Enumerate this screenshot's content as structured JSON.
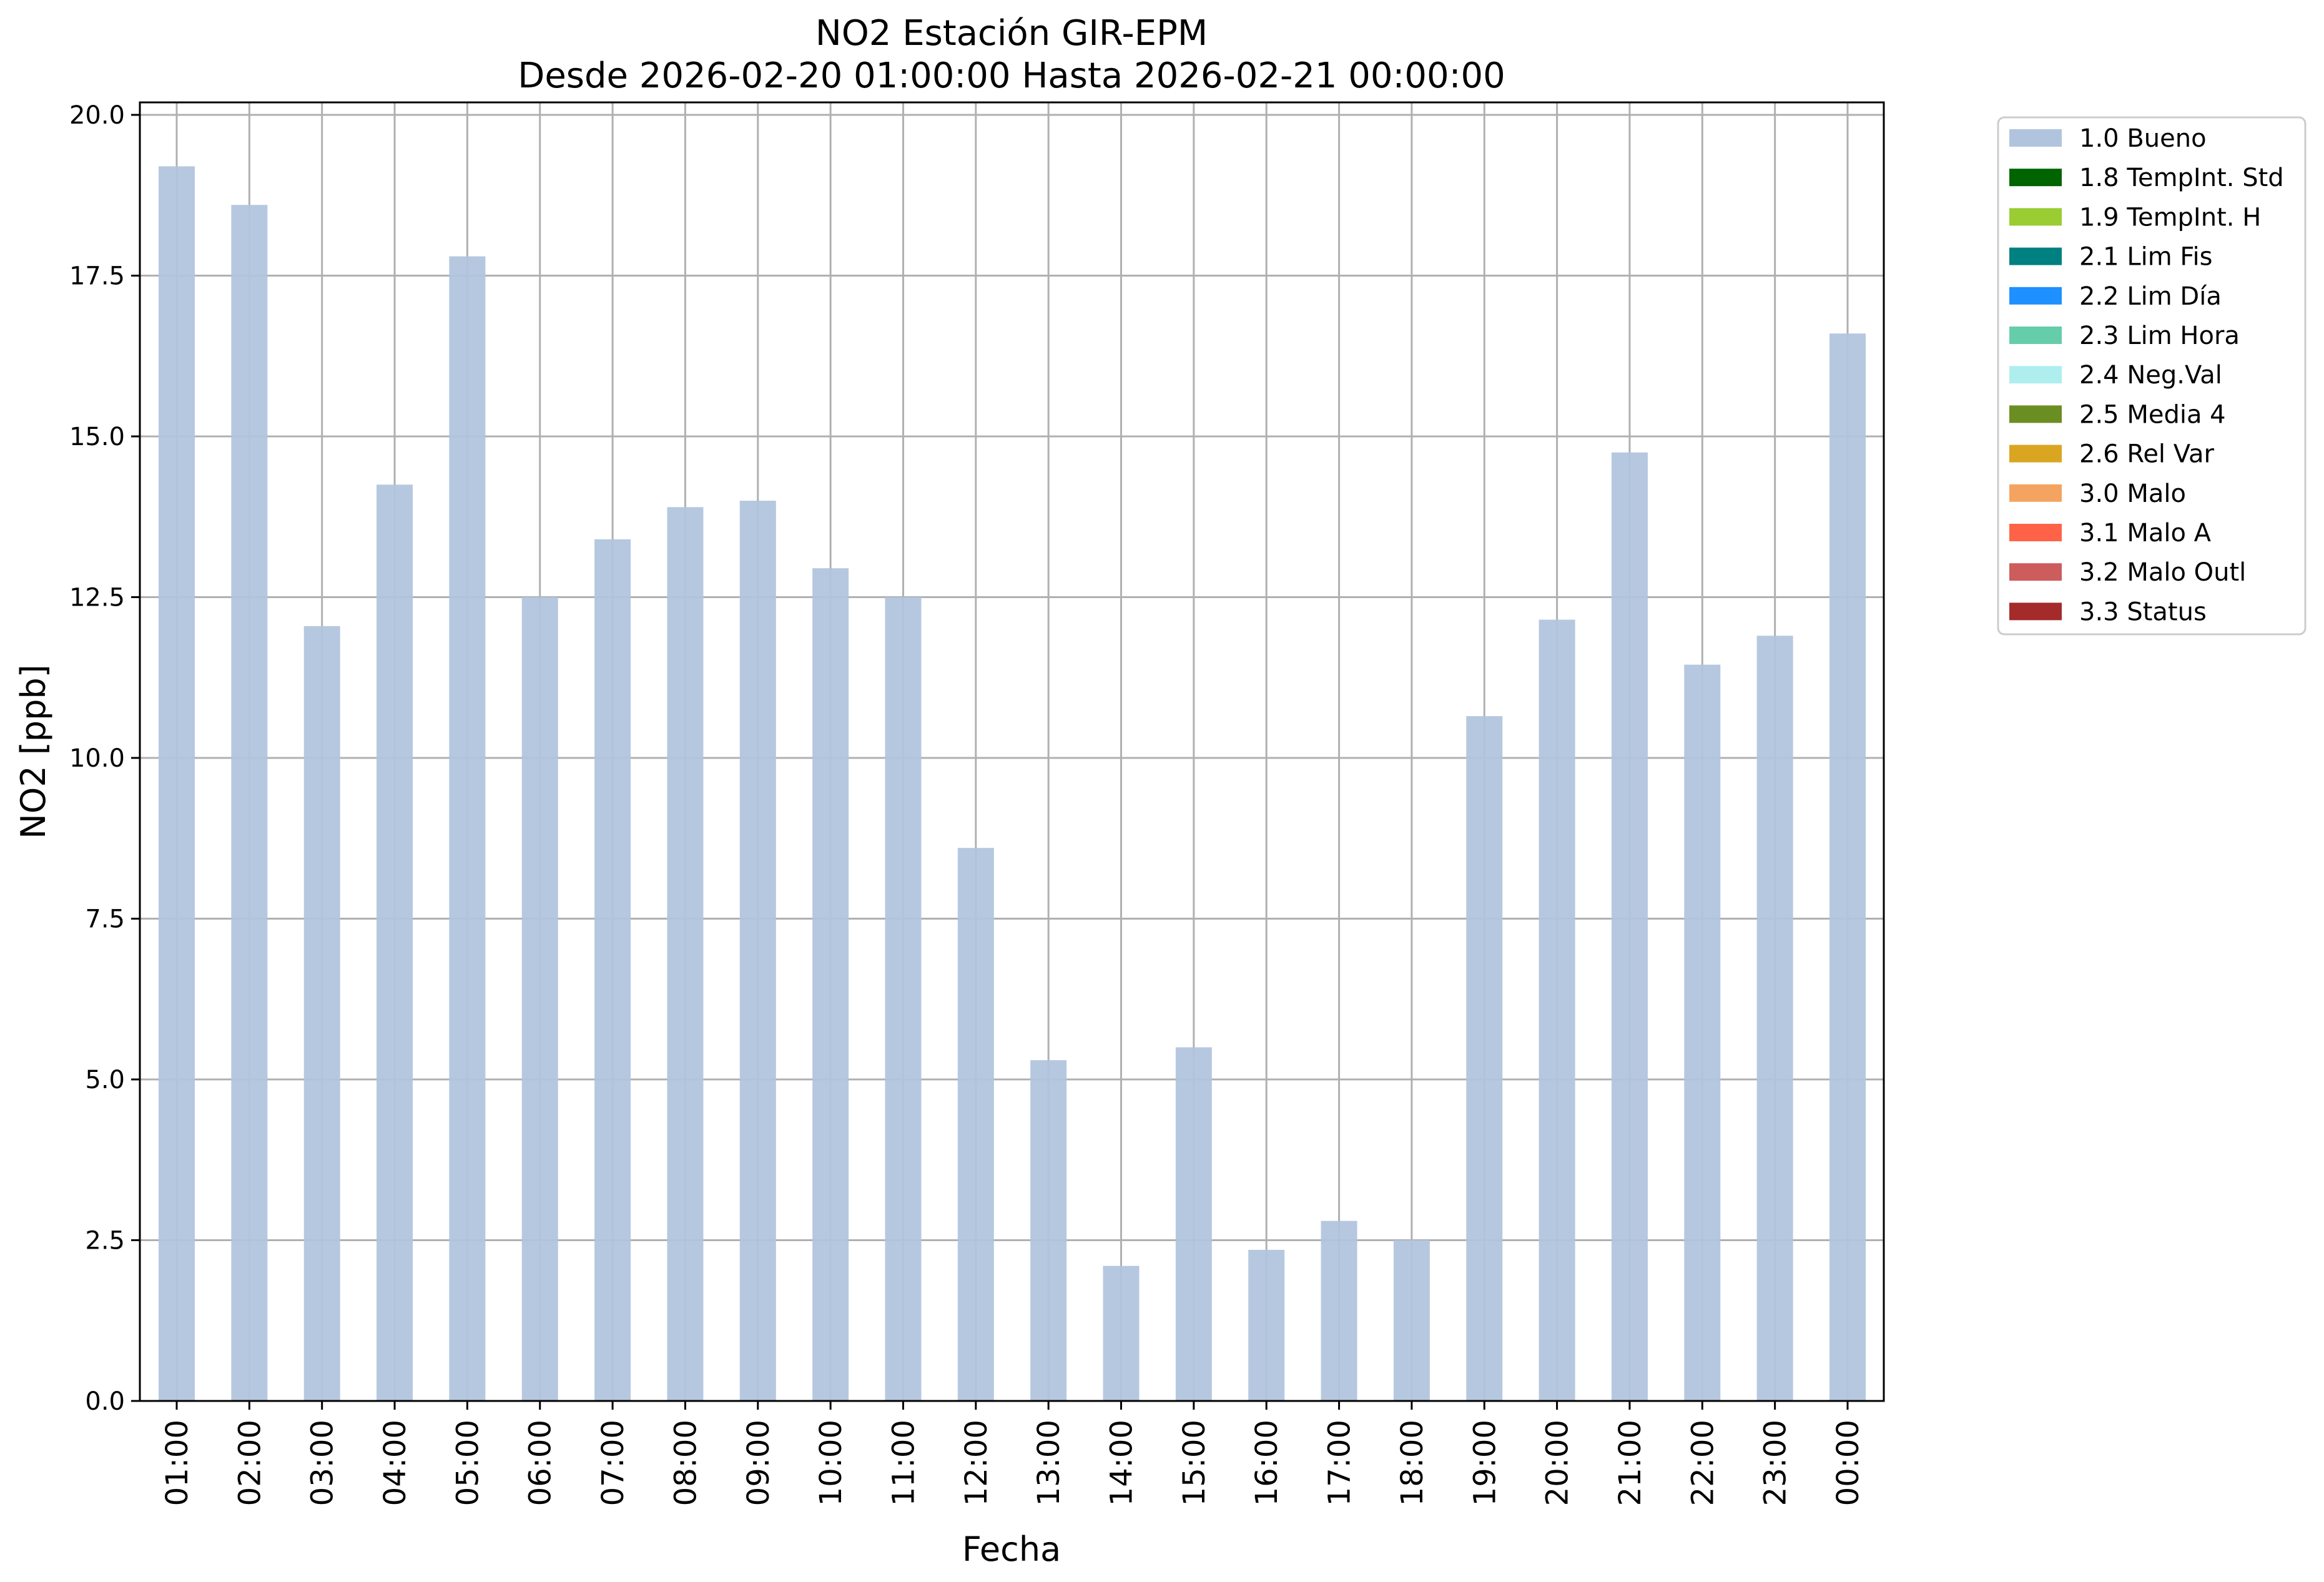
{
  "chart_data": {
    "type": "bar",
    "title": "NO2 Estación GIR-EPM",
    "subtitle": "Desde 2026-02-20 01:00:00 Hasta 2026-02-21 00:00:00",
    "xlabel": "Fecha",
    "ylabel": "NO2 [ppb]",
    "ylim": [
      0,
      20
    ],
    "yticks": [
      "0.0",
      "2.5",
      "5.0",
      "7.5",
      "10.0",
      "12.5",
      "15.0",
      "17.5",
      "20.0"
    ],
    "grid": true,
    "legend_position": "outside-top-right",
    "categories": [
      "01:00",
      "02:00",
      "03:00",
      "04:00",
      "05:00",
      "06:00",
      "07:00",
      "08:00",
      "09:00",
      "10:00",
      "11:00",
      "12:00",
      "13:00",
      "14:00",
      "15:00",
      "16:00",
      "17:00",
      "18:00",
      "19:00",
      "20:00",
      "21:00",
      "22:00",
      "23:00",
      "00:00"
    ],
    "series": [
      {
        "name": "1.0 Bueno",
        "color": "#b0c4de",
        "values": [
          19.2,
          18.6,
          12.05,
          14.25,
          17.8,
          12.5,
          13.4,
          13.9,
          14.0,
          12.95,
          12.5,
          8.6,
          5.3,
          2.1,
          5.5,
          2.35,
          2.8,
          2.5,
          10.65,
          12.15,
          14.75,
          11.45,
          11.9,
          16.6
        ]
      }
    ],
    "legend": [
      {
        "label": "1.0 Bueno",
        "color": "#b0c4de"
      },
      {
        "label": "1.8 TempInt. Std",
        "color": "#006400"
      },
      {
        "label": "1.9 TempInt. H",
        "color": "#9acd32"
      },
      {
        "label": "2.1 Lim Fis",
        "color": "#008080"
      },
      {
        "label": "2.2 Lim Día",
        "color": "#1e90ff"
      },
      {
        "label": "2.3 Lim Hora",
        "color": "#66cdaa"
      },
      {
        "label": "2.4 Neg.Val",
        "color": "#afeeee"
      },
      {
        "label": "2.5 Media 4",
        "color": "#6b8e23"
      },
      {
        "label": "2.6 Rel Var",
        "color": "#daa520"
      },
      {
        "label": "3.0 Malo",
        "color": "#f4a460"
      },
      {
        "label": "3.1 Malo A",
        "color": "#ff6347"
      },
      {
        "label": "3.2 Malo Outl",
        "color": "#cd5c5c"
      },
      {
        "label": "3.3 Status",
        "color": "#a52a2a"
      }
    ]
  }
}
